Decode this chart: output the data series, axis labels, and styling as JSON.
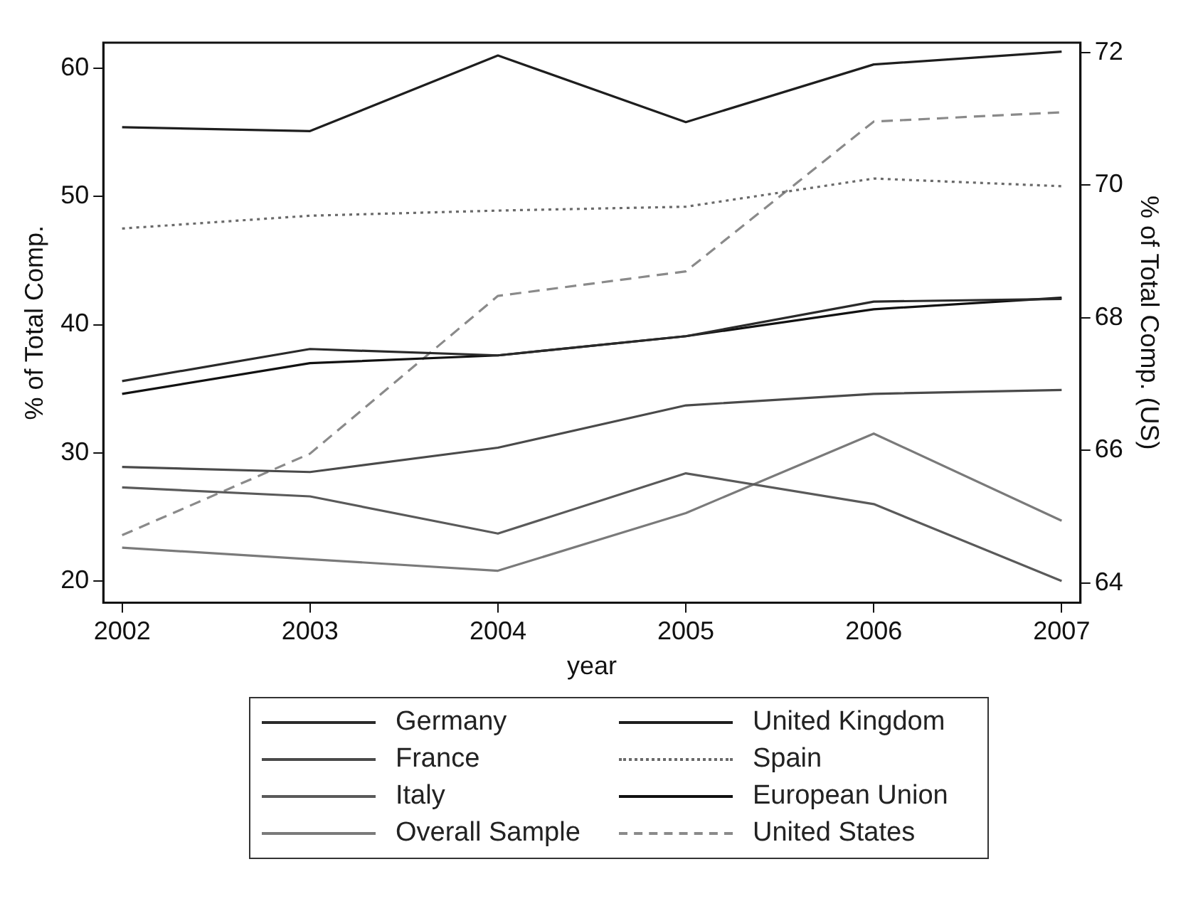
{
  "chart_data": {
    "type": "line",
    "xlabel": "year",
    "ylabel": "% of Total Comp.",
    "y2label": "% of Total Comp. (US)",
    "x": [
      2002,
      2003,
      2004,
      2005,
      2006,
      2007
    ],
    "xlim": [
      2001.9,
      2007.1
    ],
    "xticks": [
      2002,
      2003,
      2004,
      2005,
      2006,
      2007
    ],
    "ylim": [
      18.3,
      62
    ],
    "yticks": [
      20,
      30,
      40,
      50,
      60
    ],
    "y2lim": [
      63.7,
      72.15
    ],
    "y2ticks": [
      64,
      66,
      68,
      70,
      72
    ],
    "grid": false,
    "legend": "bottom",
    "marker": "none",
    "series": [
      {
        "name": "Germany",
        "color": "#2a2a2a",
        "line_style": "solid",
        "values": [
          35.6,
          38.1,
          37.6,
          39.1,
          41.8,
          42.0
        ]
      },
      {
        "name": "United Kingdom",
        "color": "#1e1e1e",
        "line_style": "solid",
        "values": [
          55.4,
          55.1,
          61.0,
          55.8,
          60.3,
          61.3
        ]
      },
      {
        "name": "France",
        "color": "#4a4a4a",
        "line_style": "solid",
        "values": [
          28.9,
          28.5,
          30.4,
          33.7,
          34.6,
          34.9
        ]
      },
      {
        "name": "Spain",
        "color": "#6a6a6a",
        "line_style": "dotted",
        "values": [
          47.5,
          48.5,
          48.9,
          49.2,
          51.4,
          50.8
        ]
      },
      {
        "name": "Italy",
        "color": "#5a5a5a",
        "line_style": "solid",
        "values": [
          27.3,
          26.6,
          23.7,
          28.4,
          26.0,
          20.0
        ]
      },
      {
        "name": "European Union",
        "color": "#111111",
        "line_style": "solid",
        "values": [
          34.6,
          37.0,
          37.6,
          39.1,
          41.2,
          42.1
        ]
      },
      {
        "name": "Overall Sample",
        "color": "#7a7a7a",
        "line_style": "solid",
        "values": [
          22.6,
          21.7,
          20.8,
          25.3,
          31.5,
          24.7
        ]
      },
      {
        "name": "United States",
        "color": "#8a8a8a",
        "line_style": "dashed",
        "axis": "y2",
        "values": [
          64.72,
          65.95,
          68.33,
          68.7,
          70.96,
          71.1
        ]
      }
    ]
  }
}
